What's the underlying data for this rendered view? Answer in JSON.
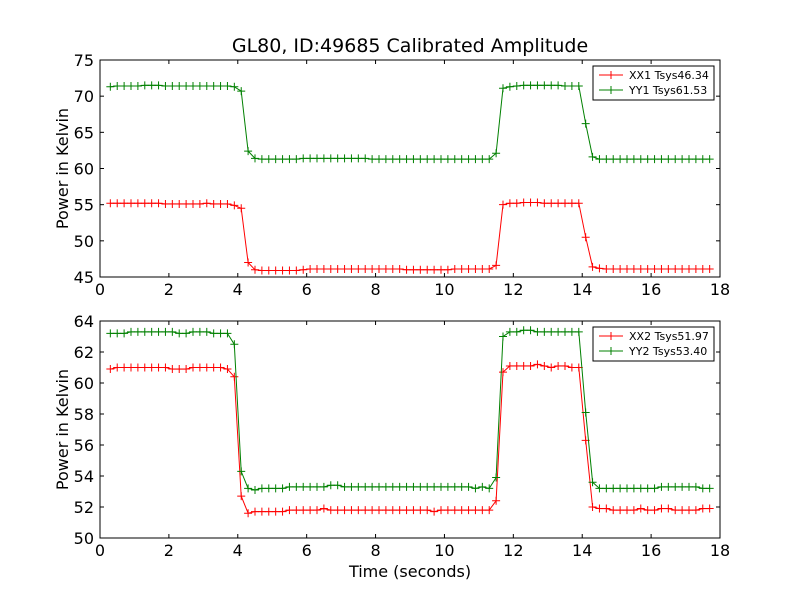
{
  "figure": {
    "title": "GL80, ID:49685 Calibrated Amplitude"
  },
  "chart_data": [
    {
      "type": "line",
      "title": "GL80, ID:49685 Calibrated Amplitude",
      "xlabel": "",
      "ylabel": "Power in Kelvin",
      "xlim": [
        0,
        18
      ],
      "ylim": [
        45,
        75
      ],
      "xticks": [
        0,
        2,
        4,
        6,
        8,
        10,
        12,
        14,
        16,
        18
      ],
      "yticks": [
        45,
        50,
        55,
        60,
        65,
        70,
        75
      ],
      "grid": false,
      "legend_position": "top-right",
      "x": [
        0.3,
        0.5,
        0.7,
        0.9,
        1.1,
        1.3,
        1.5,
        1.7,
        1.9,
        2.1,
        2.3,
        2.5,
        2.7,
        2.9,
        3.1,
        3.3,
        3.5,
        3.7,
        3.9,
        4.1,
        4.3,
        4.5,
        4.7,
        4.9,
        5.1,
        5.3,
        5.5,
        5.7,
        5.9,
        6.1,
        6.3,
        6.5,
        6.7,
        6.9,
        7.1,
        7.3,
        7.5,
        7.7,
        7.9,
        8.1,
        8.3,
        8.5,
        8.7,
        8.9,
        9.1,
        9.3,
        9.5,
        9.7,
        9.9,
        10.1,
        10.3,
        10.5,
        10.7,
        10.9,
        11.1,
        11.3,
        11.5,
        11.7,
        11.9,
        12.1,
        12.3,
        12.5,
        12.7,
        12.9,
        13.1,
        13.3,
        13.5,
        13.7,
        13.9,
        14.1,
        14.3,
        14.5,
        14.7,
        14.9,
        15.1,
        15.3,
        15.5,
        15.7,
        15.9,
        16.1,
        16.3,
        16.5,
        16.7,
        16.9,
        17.1,
        17.3,
        17.5,
        17.7
      ],
      "series": [
        {
          "name": "XX1 Tsys46.34",
          "color": "#ff0000",
          "values": [
            55.2,
            55.2,
            55.2,
            55.2,
            55.2,
            55.2,
            55.2,
            55.2,
            55.1,
            55.1,
            55.1,
            55.1,
            55.1,
            55.1,
            55.2,
            55.1,
            55.1,
            55.1,
            54.9,
            54.5,
            47.0,
            46.0,
            45.9,
            45.9,
            45.9,
            45.9,
            45.9,
            45.9,
            46.0,
            46.1,
            46.1,
            46.1,
            46.1,
            46.1,
            46.1,
            46.1,
            46.1,
            46.1,
            46.1,
            46.1,
            46.1,
            46.1,
            46.1,
            46.0,
            46.0,
            46.0,
            46.0,
            46.0,
            46.0,
            46.0,
            46.1,
            46.1,
            46.1,
            46.1,
            46.1,
            46.1,
            46.6,
            55.0,
            55.2,
            55.2,
            55.3,
            55.3,
            55.3,
            55.2,
            55.2,
            55.2,
            55.2,
            55.2,
            55.2,
            50.5,
            46.4,
            46.2,
            46.1,
            46.1,
            46.1,
            46.1,
            46.1,
            46.1,
            46.1,
            46.1,
            46.1,
            46.1,
            46.1,
            46.1,
            46.1,
            46.1,
            46.1,
            46.1
          ]
        },
        {
          "name": "YY1 Tsys61.53",
          "color": "#008000",
          "values": [
            71.3,
            71.4,
            71.4,
            71.4,
            71.4,
            71.5,
            71.5,
            71.5,
            71.4,
            71.4,
            71.4,
            71.4,
            71.4,
            71.4,
            71.4,
            71.4,
            71.4,
            71.4,
            71.3,
            70.7,
            62.4,
            61.4,
            61.3,
            61.3,
            61.3,
            61.3,
            61.3,
            61.3,
            61.4,
            61.4,
            61.4,
            61.4,
            61.4,
            61.4,
            61.4,
            61.4,
            61.4,
            61.4,
            61.3,
            61.3,
            61.3,
            61.3,
            61.3,
            61.3,
            61.3,
            61.3,
            61.3,
            61.3,
            61.3,
            61.3,
            61.3,
            61.3,
            61.3,
            61.3,
            61.3,
            61.3,
            62.1,
            71.1,
            71.3,
            71.4,
            71.5,
            71.5,
            71.5,
            71.5,
            71.5,
            71.5,
            71.4,
            71.4,
            71.4,
            66.2,
            61.6,
            61.3,
            61.3,
            61.3,
            61.3,
            61.3,
            61.3,
            61.3,
            61.3,
            61.3,
            61.3,
            61.3,
            61.3,
            61.3,
            61.3,
            61.3,
            61.3,
            61.3
          ]
        }
      ]
    },
    {
      "type": "line",
      "title": "",
      "xlabel": "Time (seconds)",
      "ylabel": "Power in Kelvin",
      "xlim": [
        0,
        18
      ],
      "ylim": [
        50,
        64
      ],
      "xticks": [
        0,
        2,
        4,
        6,
        8,
        10,
        12,
        14,
        16,
        18
      ],
      "yticks": [
        50,
        52,
        54,
        56,
        58,
        60,
        62,
        64
      ],
      "grid": false,
      "legend_position": "top-right",
      "x": [
        0.3,
        0.5,
        0.7,
        0.9,
        1.1,
        1.3,
        1.5,
        1.7,
        1.9,
        2.1,
        2.3,
        2.5,
        2.7,
        2.9,
        3.1,
        3.3,
        3.5,
        3.7,
        3.9,
        4.1,
        4.3,
        4.5,
        4.7,
        4.9,
        5.1,
        5.3,
        5.5,
        5.7,
        5.9,
        6.1,
        6.3,
        6.5,
        6.7,
        6.9,
        7.1,
        7.3,
        7.5,
        7.7,
        7.9,
        8.1,
        8.3,
        8.5,
        8.7,
        8.9,
        9.1,
        9.3,
        9.5,
        9.7,
        9.9,
        10.1,
        10.3,
        10.5,
        10.7,
        10.9,
        11.1,
        11.3,
        11.5,
        11.7,
        11.9,
        12.1,
        12.3,
        12.5,
        12.7,
        12.9,
        13.1,
        13.3,
        13.5,
        13.7,
        13.9,
        14.1,
        14.3,
        14.5,
        14.7,
        14.9,
        15.1,
        15.3,
        15.5,
        15.7,
        15.9,
        16.1,
        16.3,
        16.5,
        16.7,
        16.9,
        17.1,
        17.3,
        17.5,
        17.7
      ],
      "series": [
        {
          "name": "XX2 Tsys51.97",
          "color": "#ff0000",
          "values": [
            60.9,
            61.0,
            61.0,
            61.0,
            61.0,
            61.0,
            61.0,
            61.0,
            61.0,
            60.9,
            60.9,
            60.9,
            61.0,
            61.0,
            61.0,
            61.0,
            61.0,
            60.9,
            60.4,
            52.7,
            51.6,
            51.7,
            51.7,
            51.7,
            51.7,
            51.7,
            51.8,
            51.8,
            51.8,
            51.8,
            51.8,
            51.9,
            51.8,
            51.8,
            51.8,
            51.8,
            51.8,
            51.8,
            51.8,
            51.8,
            51.8,
            51.8,
            51.8,
            51.8,
            51.8,
            51.8,
            51.8,
            51.7,
            51.8,
            51.8,
            51.8,
            51.8,
            51.8,
            51.8,
            51.8,
            51.8,
            52.4,
            60.7,
            61.1,
            61.1,
            61.1,
            61.1,
            61.2,
            61.1,
            61.0,
            61.1,
            61.1,
            61.0,
            61.0,
            56.3,
            52.0,
            51.9,
            51.9,
            51.8,
            51.8,
            51.8,
            51.8,
            51.9,
            51.8,
            51.8,
            51.9,
            51.9,
            51.8,
            51.8,
            51.8,
            51.8,
            51.9,
            51.9
          ]
        },
        {
          "name": "YY2 Tsys53.40",
          "color": "#008000",
          "values": [
            63.2,
            63.2,
            63.2,
            63.3,
            63.3,
            63.3,
            63.3,
            63.3,
            63.3,
            63.3,
            63.2,
            63.2,
            63.3,
            63.3,
            63.3,
            63.2,
            63.2,
            63.2,
            62.5,
            54.3,
            53.2,
            53.1,
            53.2,
            53.2,
            53.2,
            53.2,
            53.3,
            53.3,
            53.3,
            53.3,
            53.3,
            53.3,
            53.4,
            53.4,
            53.3,
            53.3,
            53.3,
            53.3,
            53.3,
            53.3,
            53.3,
            53.3,
            53.3,
            53.3,
            53.3,
            53.3,
            53.3,
            53.3,
            53.3,
            53.3,
            53.3,
            53.3,
            53.3,
            53.2,
            53.3,
            53.2,
            53.9,
            63.0,
            63.3,
            63.3,
            63.4,
            63.4,
            63.3,
            63.3,
            63.3,
            63.3,
            63.3,
            63.3,
            63.3,
            58.1,
            53.6,
            53.2,
            53.2,
            53.2,
            53.2,
            53.2,
            53.2,
            53.2,
            53.2,
            53.2,
            53.3,
            53.3,
            53.3,
            53.3,
            53.3,
            53.3,
            53.2,
            53.2
          ]
        }
      ]
    }
  ]
}
